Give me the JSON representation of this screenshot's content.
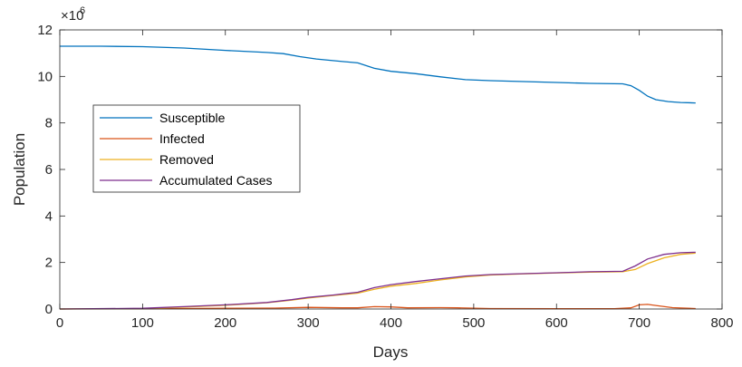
{
  "chart_data": {
    "type": "line",
    "xlabel": "Days",
    "ylabel": "Population",
    "xlim": [
      0,
      800
    ],
    "ylim": [
      0,
      12
    ],
    "y_multiplier_label": "×10",
    "y_multiplier_exponent": "6",
    "x_ticks": [
      "0",
      "100",
      "200",
      "300",
      "400",
      "500",
      "600",
      "700",
      "800"
    ],
    "y_ticks": [
      "0",
      "2",
      "4",
      "6",
      "8",
      "10",
      "12"
    ],
    "grid": false,
    "legend_position": "left",
    "series": [
      {
        "name": "Susceptible",
        "color": "#0072BD",
        "points": [
          [
            0,
            11.3
          ],
          [
            50,
            11.3
          ],
          [
            100,
            11.28
          ],
          [
            150,
            11.22
          ],
          [
            200,
            11.12
          ],
          [
            250,
            11.03
          ],
          [
            270,
            10.98
          ],
          [
            290,
            10.85
          ],
          [
            310,
            10.75
          ],
          [
            330,
            10.68
          ],
          [
            360,
            10.58
          ],
          [
            380,
            10.35
          ],
          [
            400,
            10.22
          ],
          [
            430,
            10.12
          ],
          [
            460,
            9.98
          ],
          [
            490,
            9.86
          ],
          [
            520,
            9.82
          ],
          [
            560,
            9.78
          ],
          [
            600,
            9.74
          ],
          [
            640,
            9.7
          ],
          [
            680,
            9.68
          ],
          [
            690,
            9.6
          ],
          [
            700,
            9.4
          ],
          [
            710,
            9.15
          ],
          [
            720,
            9.0
          ],
          [
            735,
            8.92
          ],
          [
            750,
            8.88
          ],
          [
            768,
            8.86
          ]
        ]
      },
      {
        "name": "Infected",
        "color": "#D95319",
        "points": [
          [
            0,
            0.0
          ],
          [
            100,
            0.01
          ],
          [
            150,
            0.02
          ],
          [
            200,
            0.03
          ],
          [
            260,
            0.04
          ],
          [
            300,
            0.07
          ],
          [
            340,
            0.05
          ],
          [
            360,
            0.05
          ],
          [
            380,
            0.1
          ],
          [
            400,
            0.09
          ],
          [
            420,
            0.05
          ],
          [
            460,
            0.06
          ],
          [
            480,
            0.05
          ],
          [
            520,
            0.02
          ],
          [
            600,
            0.01
          ],
          [
            670,
            0.01
          ],
          [
            690,
            0.05
          ],
          [
            700,
            0.18
          ],
          [
            710,
            0.2
          ],
          [
            720,
            0.15
          ],
          [
            740,
            0.06
          ],
          [
            768,
            0.02
          ]
        ]
      },
      {
        "name": "Removed",
        "color": "#EDB120",
        "points": [
          [
            0,
            0.0
          ],
          [
            100,
            0.02
          ],
          [
            150,
            0.08
          ],
          [
            200,
            0.16
          ],
          [
            250,
            0.27
          ],
          [
            280,
            0.38
          ],
          [
            300,
            0.47
          ],
          [
            330,
            0.58
          ],
          [
            360,
            0.68
          ],
          [
            380,
            0.85
          ],
          [
            400,
            0.98
          ],
          [
            430,
            1.1
          ],
          [
            460,
            1.25
          ],
          [
            490,
            1.38
          ],
          [
            520,
            1.46
          ],
          [
            560,
            1.51
          ],
          [
            600,
            1.55
          ],
          [
            640,
            1.58
          ],
          [
            680,
            1.6
          ],
          [
            695,
            1.7
          ],
          [
            710,
            1.95
          ],
          [
            730,
            2.2
          ],
          [
            750,
            2.35
          ],
          [
            768,
            2.4
          ]
        ]
      },
      {
        "name": "Accumulated Cases",
        "color": "#7E2F8E",
        "points": [
          [
            0,
            0.0
          ],
          [
            100,
            0.03
          ],
          [
            150,
            0.1
          ],
          [
            200,
            0.18
          ],
          [
            250,
            0.28
          ],
          [
            280,
            0.4
          ],
          [
            300,
            0.5
          ],
          [
            330,
            0.6
          ],
          [
            360,
            0.72
          ],
          [
            380,
            0.92
          ],
          [
            400,
            1.05
          ],
          [
            430,
            1.18
          ],
          [
            460,
            1.3
          ],
          [
            490,
            1.42
          ],
          [
            520,
            1.48
          ],
          [
            560,
            1.52
          ],
          [
            600,
            1.56
          ],
          [
            640,
            1.6
          ],
          [
            680,
            1.62
          ],
          [
            695,
            1.85
          ],
          [
            710,
            2.15
          ],
          [
            730,
            2.35
          ],
          [
            750,
            2.42
          ],
          [
            768,
            2.44
          ]
        ]
      }
    ]
  }
}
